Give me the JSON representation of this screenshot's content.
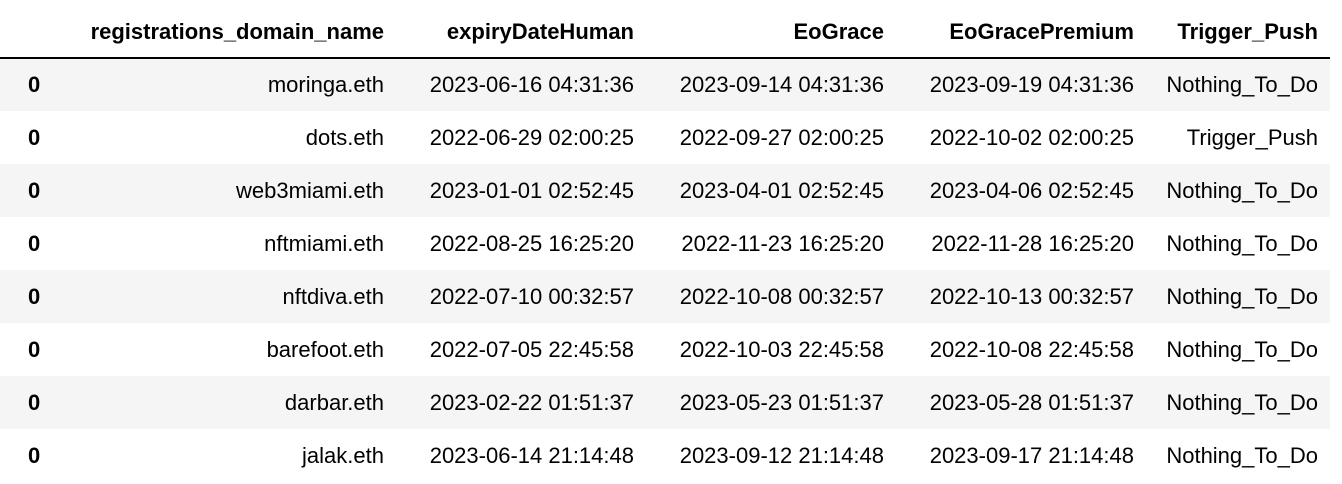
{
  "table": {
    "index_header": "",
    "columns": [
      "registrations_domain_name",
      "expiryDateHuman",
      "EoGrace",
      "EoGracePremium",
      "Trigger_Push"
    ],
    "rows": [
      {
        "index": "0",
        "cells": [
          "moringa.eth",
          "2023-06-16 04:31:36",
          "2023-09-14 04:31:36",
          "2023-09-19 04:31:36",
          "Nothing_To_Do"
        ]
      },
      {
        "index": "0",
        "cells": [
          "dots.eth",
          "2022-06-29 02:00:25",
          "2022-09-27 02:00:25",
          "2022-10-02 02:00:25",
          "Trigger_Push"
        ]
      },
      {
        "index": "0",
        "cells": [
          "web3miami.eth",
          "2023-01-01 02:52:45",
          "2023-04-01 02:52:45",
          "2023-04-06 02:52:45",
          "Nothing_To_Do"
        ]
      },
      {
        "index": "0",
        "cells": [
          "nftmiami.eth",
          "2022-08-25 16:25:20",
          "2022-11-23 16:25:20",
          "2022-11-28 16:25:20",
          "Nothing_To_Do"
        ]
      },
      {
        "index": "0",
        "cells": [
          "nftdiva.eth",
          "2022-07-10 00:32:57",
          "2022-10-08 00:32:57",
          "2022-10-13 00:32:57",
          "Nothing_To_Do"
        ]
      },
      {
        "index": "0",
        "cells": [
          "barefoot.eth",
          "2022-07-05 22:45:58",
          "2022-10-03 22:45:58",
          "2022-10-08 22:45:58",
          "Nothing_To_Do"
        ]
      },
      {
        "index": "0",
        "cells": [
          "darbar.eth",
          "2023-02-22 01:51:37",
          "2023-05-23 01:51:37",
          "2023-05-28 01:51:37",
          "Nothing_To_Do"
        ]
      },
      {
        "index": "0",
        "cells": [
          "jalak.eth",
          "2023-06-14 21:14:48",
          "2023-09-12 21:14:48",
          "2023-09-17 21:14:48",
          "Nothing_To_Do"
        ]
      }
    ]
  },
  "colors": {
    "stripe": "#f5f5f5",
    "background": "#ffffff",
    "text": "#000000"
  }
}
